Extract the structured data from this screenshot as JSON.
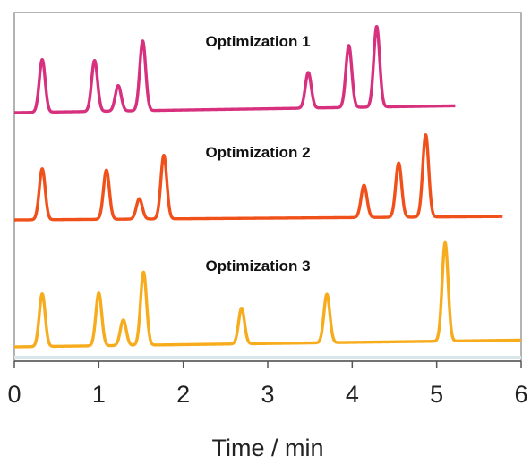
{
  "chart_data": {
    "type": "line",
    "title": "",
    "xlabel": "Time / min",
    "ylabel": "",
    "xlim": [
      0,
      6
    ],
    "xticks": [
      "0",
      "1",
      "2",
      "3",
      "4",
      "5",
      "6"
    ],
    "grid": false,
    "legend": "none",
    "peak_width_min": 0.035,
    "series": [
      {
        "name": "Optimization 1",
        "color": "#d6307f",
        "end_time": 5.22,
        "baseline": 0.08,
        "peaks": [
          {
            "t": 0.33,
            "h": 0.62
          },
          {
            "t": 0.95,
            "h": 0.6
          },
          {
            "t": 1.23,
            "h": 0.3
          },
          {
            "t": 1.52,
            "h": 0.82
          },
          {
            "t": 3.48,
            "h": 0.42
          },
          {
            "t": 3.96,
            "h": 0.73
          },
          {
            "t": 4.29,
            "h": 0.95
          }
        ]
      },
      {
        "name": "Optimization 2",
        "color": "#f0501a",
        "end_time": 5.78,
        "baseline": 0.04,
        "peaks": [
          {
            "t": 0.33,
            "h": 0.6
          },
          {
            "t": 1.09,
            "h": 0.58
          },
          {
            "t": 1.48,
            "h": 0.24
          },
          {
            "t": 1.77,
            "h": 0.75
          },
          {
            "t": 4.14,
            "h": 0.38
          },
          {
            "t": 4.55,
            "h": 0.64
          },
          {
            "t": 4.87,
            "h": 0.97
          }
        ]
      },
      {
        "name": "Optimization 3",
        "color": "#f7ac1e",
        "end_time": 6.0,
        "baseline": 0.08,
        "peaks": [
          {
            "t": 0.33,
            "h": 0.62
          },
          {
            "t": 1.0,
            "h": 0.62
          },
          {
            "t": 1.29,
            "h": 0.3
          },
          {
            "t": 1.53,
            "h": 0.86
          },
          {
            "t": 2.69,
            "h": 0.42
          },
          {
            "t": 3.7,
            "h": 0.57
          },
          {
            "t": 5.1,
            "h": 1.16
          }
        ]
      }
    ]
  }
}
